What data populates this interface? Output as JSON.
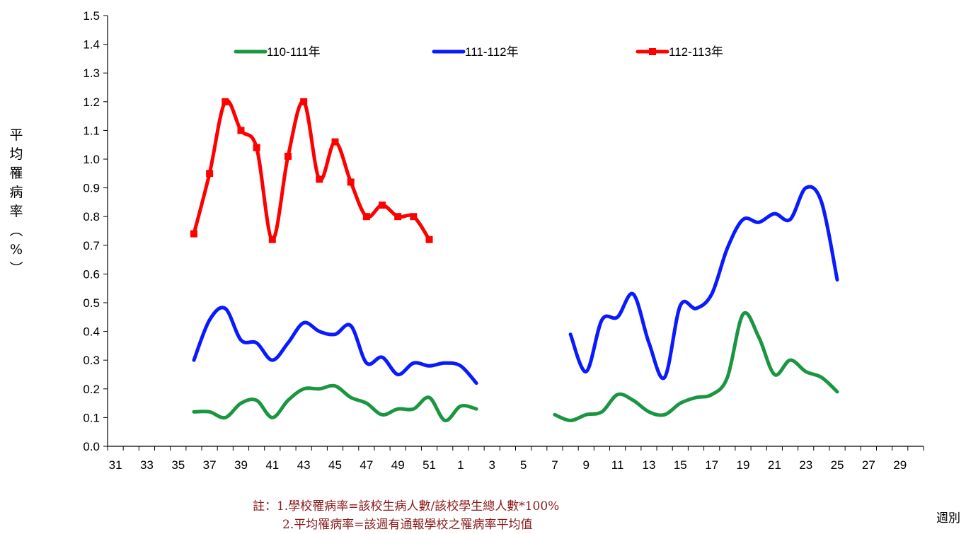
{
  "chart_data": {
    "type": "line",
    "title": "",
    "xlabel": "週別",
    "ylabel": "平均罹病率(%)",
    "ylim": [
      0,
      1.5
    ],
    "y_ticks": [
      "0.0",
      "0.1",
      "0.2",
      "0.3",
      "0.4",
      "0.5",
      "0.6",
      "0.7",
      "0.8",
      "0.9",
      "1.0",
      "1.1",
      "1.2",
      "1.3",
      "1.4",
      "1.5"
    ],
    "x_categories": [
      31,
      32,
      33,
      34,
      35,
      36,
      37,
      38,
      39,
      40,
      41,
      42,
      43,
      44,
      45,
      46,
      47,
      48,
      49,
      50,
      51,
      52,
      1,
      2,
      3,
      4,
      5,
      6,
      7,
      8,
      9,
      10,
      11,
      12,
      13,
      14,
      15,
      16,
      17,
      18,
      19,
      20,
      21,
      22,
      23,
      24,
      25,
      26,
      27,
      28,
      29,
      30
    ],
    "x_tick_labels": [
      "31",
      "33",
      "35",
      "37",
      "39",
      "41",
      "43",
      "45",
      "47",
      "49",
      "51",
      "1",
      "3",
      "5",
      "7",
      "9",
      "11",
      "13",
      "15",
      "17",
      "19",
      "21",
      "23",
      "25",
      "27",
      "29"
    ],
    "legend_placement": "top",
    "grid": false,
    "series": [
      {
        "name": "110-111年",
        "color": "#1a9641",
        "marker": "none",
        "segments": [
          {
            "x": [
              36,
              37,
              38,
              39,
              40,
              41,
              42,
              43,
              44,
              45,
              46,
              47,
              48,
              49,
              50,
              51,
              52,
              1,
              2
            ],
            "y": [
              0.12,
              0.12,
              0.1,
              0.15,
              0.16,
              0.1,
              0.16,
              0.2,
              0.2,
              0.21,
              0.17,
              0.15,
              0.11,
              0.13,
              0.13,
              0.17,
              0.09,
              0.14,
              0.13
            ]
          },
          {
            "x": [
              7,
              8,
              9,
              10,
              11,
              12,
              13,
              14,
              15,
              16,
              17,
              18,
              19,
              20,
              21,
              22,
              23,
              24,
              25
            ],
            "y": [
              0.11,
              0.09,
              0.11,
              0.12,
              0.18,
              0.16,
              0.12,
              0.11,
              0.15,
              0.17,
              0.18,
              0.24,
              0.46,
              0.38,
              0.25,
              0.3,
              0.26,
              0.24,
              0.19
            ]
          }
        ]
      },
      {
        "name": "111-112年",
        "color": "#0a1aff",
        "marker": "none",
        "segments": [
          {
            "x": [
              36,
              37,
              38,
              39,
              40,
              41,
              42,
              43,
              44,
              45,
              46,
              47,
              48,
              49,
              50,
              51,
              52,
              1,
              2
            ],
            "y": [
              0.3,
              0.44,
              0.48,
              0.37,
              0.36,
              0.3,
              0.36,
              0.43,
              0.4,
              0.39,
              0.42,
              0.29,
              0.31,
              0.25,
              0.29,
              0.28,
              0.29,
              0.28,
              0.22
            ]
          },
          {
            "x": [
              8,
              9,
              10,
              11,
              12,
              13,
              14,
              15,
              16,
              17,
              18,
              19,
              20,
              21,
              22,
              23,
              24,
              25
            ],
            "y": [
              0.39,
              0.26,
              0.44,
              0.45,
              0.53,
              0.36,
              0.24,
              0.49,
              0.48,
              0.53,
              0.69,
              0.79,
              0.78,
              0.81,
              0.79,
              0.9,
              0.85,
              0.58
            ]
          }
        ]
      },
      {
        "name": "112-113年",
        "color": "#ff0000",
        "marker": "square",
        "segments": [
          {
            "x": [
              36,
              37,
              38,
              39,
              40,
              41,
              42,
              43,
              44,
              45,
              46,
              47,
              48,
              49,
              50,
              51
            ],
            "y": [
              0.74,
              0.95,
              1.2,
              1.1,
              1.04,
              0.72,
              1.01,
              1.2,
              0.93,
              1.06,
              0.92,
              0.8,
              0.84,
              0.8,
              0.8,
              0.72
            ]
          }
        ]
      }
    ],
    "notes": [
      "註：1.學校罹病率=該校生病人數/該校學生總人數*100%",
      "2.平均罹病率=該週有通報學校之罹病率平均值"
    ]
  }
}
